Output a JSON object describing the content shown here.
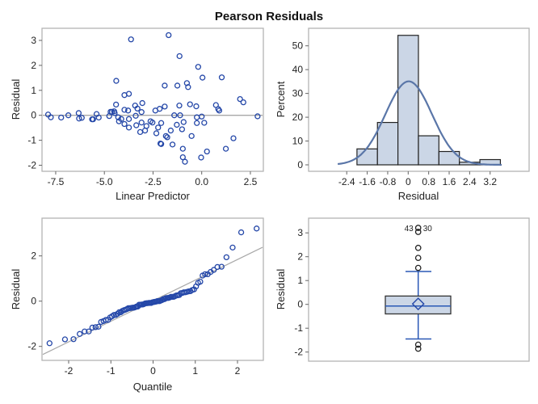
{
  "title": "Pearson Residuals",
  "colors": {
    "marker": "#2447a8",
    "bar_fill": "#cbd6e6",
    "bar_stroke": "#222222",
    "curve": "#5a76a8",
    "box_line": "#2a58b5",
    "ref_line": "#a8a8a8",
    "frame": "#b4b4b4"
  },
  "chart_data": [
    {
      "type": "scatter",
      "name": "residual-vs-predictor",
      "xlabel": "Linear Predictor",
      "ylabel": "Residual",
      "xticks": [
        "-7.5",
        "-5.0",
        "-2.5",
        "0.0",
        "2.5"
      ],
      "yticks": [
        "-2",
        "-1",
        "0",
        "1",
        "2",
        "3"
      ],
      "reference_line_y": 0,
      "points": [
        [
          -7.89,
          0.03
        ],
        [
          -7.75,
          -0.08
        ],
        [
          -7.22,
          -0.09
        ],
        [
          -6.85,
          0.0
        ],
        [
          -6.32,
          0.09
        ],
        [
          -6.3,
          -0.13
        ],
        [
          -6.16,
          -0.1
        ],
        [
          -5.63,
          -0.16
        ],
        [
          -5.58,
          -0.16
        ],
        [
          -5.4,
          0.05
        ],
        [
          -5.29,
          -0.09
        ],
        [
          -4.75,
          -0.03
        ],
        [
          -4.68,
          0.14
        ],
        [
          -4.61,
          0.14
        ],
        [
          -4.5,
          0.16
        ],
        [
          -4.47,
          0.09
        ],
        [
          -4.4,
          0.43
        ],
        [
          -4.39,
          1.38
        ],
        [
          -4.29,
          -0.08
        ],
        [
          -4.25,
          -0.24
        ],
        [
          -4.13,
          -0.15
        ],
        [
          -3.97,
          0.81
        ],
        [
          -3.97,
          0.22
        ],
        [
          -3.97,
          -0.35
        ],
        [
          -3.78,
          0.19
        ],
        [
          -3.74,
          0.86
        ],
        [
          -3.74,
          -0.15
        ],
        [
          -3.74,
          -0.49
        ],
        [
          -3.42,
          0.39
        ],
        [
          -3.39,
          -0.02
        ],
        [
          -3.36,
          -0.4
        ],
        [
          -3.3,
          0.27
        ],
        [
          -3.16,
          -0.67
        ],
        [
          -3.09,
          0.13
        ],
        [
          -3.09,
          -0.29
        ],
        [
          -3.05,
          0.49
        ],
        [
          -2.91,
          -0.61
        ],
        [
          -2.84,
          -0.43
        ],
        [
          -2.63,
          -0.24
        ],
        [
          -2.53,
          -0.29
        ],
        [
          -2.38,
          0.19
        ],
        [
          -2.33,
          -0.72
        ],
        [
          -2.24,
          -0.49
        ],
        [
          -2.16,
          0.26
        ],
        [
          -2.12,
          -1.13
        ],
        [
          -2.08,
          -1.15
        ],
        [
          -2.08,
          -0.31
        ],
        [
          -1.9,
          0.35
        ],
        [
          -1.9,
          1.19
        ],
        [
          -1.84,
          -0.83
        ],
        [
          -1.77,
          -0.88
        ],
        [
          -1.7,
          3.21
        ],
        [
          -1.59,
          -0.61
        ],
        [
          -1.5,
          -1.17
        ],
        [
          -1.41,
          0.0
        ],
        [
          -1.28,
          -0.38
        ],
        [
          -1.25,
          1.19
        ],
        [
          -1.15,
          0.39
        ],
        [
          -1.11,
          0.0
        ],
        [
          -1.14,
          2.37
        ],
        [
          -1.01,
          -0.56
        ],
        [
          -0.97,
          -1.34
        ],
        [
          -0.97,
          -1.68
        ],
        [
          -0.93,
          -0.27
        ],
        [
          -0.86,
          -1.86
        ],
        [
          -0.76,
          1.29
        ],
        [
          -0.7,
          1.13
        ],
        [
          -0.6,
          0.44
        ],
        [
          -0.52,
          -0.83
        ],
        [
          -0.28,
          0.36
        ],
        [
          -0.25,
          -0.08
        ],
        [
          -0.25,
          -0.31
        ],
        [
          -0.18,
          1.94
        ],
        [
          -0.03,
          -1.69
        ],
        [
          0.0,
          -0.05
        ],
        [
          0.04,
          1.51
        ],
        [
          0.13,
          -0.3
        ],
        [
          0.27,
          -1.45
        ],
        [
          0.73,
          0.41
        ],
        [
          0.85,
          0.25
        ],
        [
          0.9,
          0.19
        ],
        [
          1.03,
          1.52
        ],
        [
          1.24,
          -1.34
        ],
        [
          1.63,
          -0.92
        ],
        [
          1.97,
          0.65
        ],
        [
          2.14,
          0.52
        ],
        [
          2.87,
          -0.04
        ],
        [
          -3.63,
          3.04
        ]
      ]
    },
    {
      "type": "bar",
      "name": "histogram",
      "xlabel": "Residual",
      "ylabel": "Percent",
      "xticks": [
        "-2.4",
        "-1.6",
        "-0.8",
        "0",
        "0.8",
        "1.6",
        "2.4",
        "3.2"
      ],
      "yticks": [
        "0",
        "10",
        "20",
        "30",
        "40",
        "50"
      ],
      "bin_midpoints": [
        -1.6,
        -0.8,
        0,
        0.8,
        1.6,
        2.4,
        3.2
      ],
      "bin_width": 0.8,
      "values": [
        6.7,
        17.8,
        54.4,
        12.2,
        5.6,
        1.1,
        2.2
      ],
      "normal_curve": {
        "mean": 0.02,
        "sd": 0.91
      }
    },
    {
      "type": "scatter",
      "name": "qq-plot",
      "xlabel": "Quantile",
      "ylabel": "Residual",
      "xticks": [
        "-2",
        "-1",
        "0",
        "1",
        "2"
      ],
      "yticks": [
        "-2",
        "0",
        "2"
      ],
      "reference_line": {
        "intercept": 0.02,
        "slope": 0.91
      }
    },
    {
      "type": "box",
      "name": "boxplot",
      "ylabel": "Residual",
      "yticks": [
        "-2",
        "-1",
        "0",
        "1",
        "2",
        "3"
      ],
      "q1": -0.4,
      "median": -0.07,
      "q3": 0.35,
      "mean": 0.02,
      "whisker_low": -1.45,
      "whisker_high": 1.38,
      "outliers": [
        1.53,
        1.95,
        2.37,
        3.04,
        3.21,
        -1.69,
        -1.86
      ],
      "outlier_labels": [
        {
          "value": 3.04,
          "label": "43",
          "side": "left"
        },
        {
          "value": 3.21,
          "label": "30",
          "side": "right"
        }
      ]
    }
  ]
}
